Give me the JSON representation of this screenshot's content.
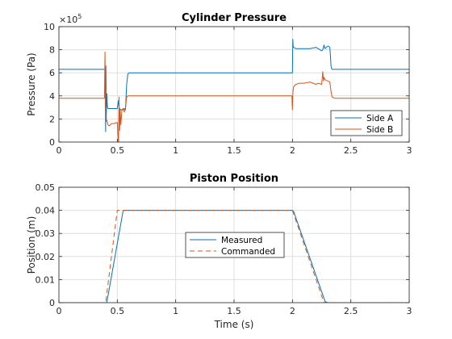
{
  "chart_data": [
    {
      "type": "line",
      "title": "Cylinder Pressure",
      "xlabel": "",
      "ylabel": "Pressure (Pa)",
      "xlim": [
        0,
        3
      ],
      "ylim": [
        0,
        10
      ],
      "y_exponent_label": "×10",
      "y_exponent_power": "5",
      "x_ticks": [
        0,
        0.5,
        1,
        1.5,
        2,
        2.5,
        3
      ],
      "x_tick_labels": [
        "0",
        "0.5",
        "1",
        "1.5",
        "2",
        "2.5",
        "3"
      ],
      "y_ticks": [
        0,
        2,
        4,
        6,
        8,
        10
      ],
      "y_tick_labels": [
        "0",
        "2",
        "4",
        "6",
        "8",
        "10"
      ],
      "grid": true,
      "legend_position": "bottom-right",
      "series": [
        {
          "name": "Side A",
          "color": "#0072bd",
          "style": "solid",
          "x": [
            0,
            0.395,
            0.4,
            0.402,
            0.405,
            0.41,
            0.415,
            0.42,
            0.43,
            0.44,
            0.45,
            0.47,
            0.49,
            0.5,
            0.51,
            0.515,
            0.52,
            0.53,
            0.55,
            0.56,
            0.57,
            0.58,
            0.59,
            0.6,
            0.61,
            0.62,
            1.995,
            2.0,
            2.003,
            2.006,
            2.01,
            2.03,
            2.1,
            2.15,
            2.2,
            2.22,
            2.25,
            2.26,
            2.27,
            2.28,
            2.3,
            2.31,
            2.32,
            2.325,
            2.33,
            2.335,
            2.34,
            2.36,
            2.4,
            3
          ],
          "y": [
            6.3,
            6.3,
            0.9,
            6.6,
            1.8,
            4.2,
            3.1,
            2.9,
            2.9,
            2.9,
            2.9,
            2.9,
            2.9,
            2.9,
            3.6,
            3.0,
            2.9,
            2.8,
            2.8,
            2.9,
            2.8,
            5.0,
            5.9,
            6.0,
            6.0,
            6.0,
            6.0,
            6.0,
            8.9,
            8.3,
            8.2,
            8.1,
            8.1,
            8.1,
            8.2,
            8.1,
            7.9,
            8.0,
            8.4,
            8.1,
            8.3,
            8.3,
            8.2,
            7.5,
            6.6,
            6.4,
            6.3,
            6.3,
            6.3,
            6.3
          ]
        },
        {
          "name": "Side B",
          "color": "#d95319",
          "style": "solid",
          "x": [
            0,
            0.39,
            0.395,
            0.398,
            0.4,
            0.402,
            0.405,
            0.41,
            0.42,
            0.43,
            0.44,
            0.45,
            0.47,
            0.5,
            0.51,
            0.515,
            0.52,
            0.525,
            0.53,
            0.54,
            0.55,
            0.56,
            0.57,
            0.58,
            0.59,
            0.6,
            0.61,
            1.995,
            2.0,
            2.003,
            2.006,
            2.01,
            2.03,
            2.06,
            2.1,
            2.15,
            2.2,
            2.22,
            2.25,
            2.26,
            2.265,
            2.27,
            2.28,
            2.3,
            2.32,
            2.33,
            2.34,
            2.36,
            2.4,
            3
          ],
          "y": [
            3.8,
            3.8,
            7.8,
            3.0,
            4.5,
            2.0,
            1.8,
            1.9,
            1.5,
            1.4,
            1.5,
            1.6,
            1.6,
            1.7,
            -0.3,
            3.9,
            1.0,
            2.8,
            1.5,
            2.8,
            2.9,
            2.6,
            3.0,
            3.9,
            4.0,
            4.0,
            4.0,
            4.0,
            2.8,
            4.1,
            4.5,
            4.8,
            5.0,
            5.1,
            5.1,
            5.2,
            5.0,
            5.1,
            5.0,
            6.1,
            5.3,
            5.6,
            5.4,
            5.3,
            5.2,
            4.4,
            3.9,
            3.8,
            3.8,
            3.8
          ]
        }
      ]
    },
    {
      "type": "line",
      "title": "Piston Position",
      "xlabel": "Time (s)",
      "ylabel": "Position (m)",
      "xlim": [
        0,
        3
      ],
      "ylim": [
        0,
        0.05
      ],
      "x_ticks": [
        0,
        0.5,
        1,
        1.5,
        2,
        2.5,
        3
      ],
      "x_tick_labels": [
        "0",
        "0.5",
        "1",
        "1.5",
        "2",
        "2.5",
        "3"
      ],
      "y_ticks": [
        0,
        0.01,
        0.02,
        0.03,
        0.04,
        0.05
      ],
      "y_tick_labels": [
        "0",
        "0.01",
        "0.02",
        "0.03",
        "0.04",
        "0.05"
      ],
      "grid": true,
      "legend_position": "center",
      "series": [
        {
          "name": "Measured",
          "color": "#0072bd",
          "style": "solid",
          "x": [
            0,
            0.41,
            0.55,
            0.56,
            2.0,
            2.01,
            2.28,
            2.3,
            3
          ],
          "y": [
            0,
            0,
            0.04,
            0.04,
            0.04,
            0.0395,
            0.0005,
            0,
            0
          ]
        },
        {
          "name": "Commanded",
          "color": "#d95319",
          "style": "dashed",
          "x": [
            0,
            0.4,
            0.5,
            2.0,
            2.27,
            3
          ],
          "y": [
            0,
            0,
            0.04,
            0.04,
            0,
            0
          ]
        }
      ]
    }
  ]
}
